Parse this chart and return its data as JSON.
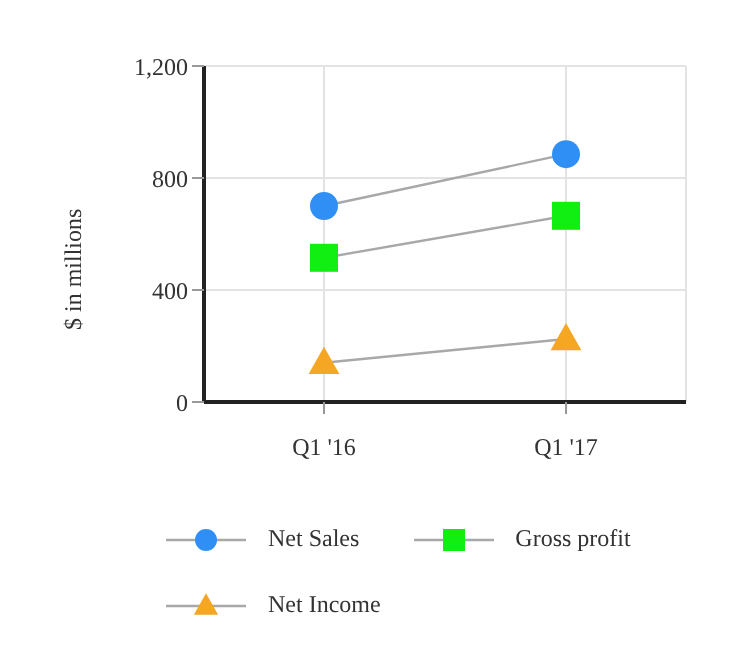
{
  "chart_data": {
    "type": "line",
    "ylabel": "$ in millions",
    "categories": [
      "Q1 '16",
      "Q1 '17"
    ],
    "series": [
      {
        "name": "Net Sales",
        "color": "#2f8ff5",
        "marker": "circle",
        "values": [
          700,
          885
        ]
      },
      {
        "name": "Gross profit",
        "color": "#11ee11",
        "marker": "square",
        "values": [
          515,
          665
        ]
      },
      {
        "name": "Net Income",
        "color": "#f5a623",
        "marker": "triangle",
        "values": [
          140,
          225
        ]
      }
    ],
    "ylim": [
      0,
      1200
    ],
    "yticks": [
      0,
      400,
      800,
      {
        "value": 1200,
        "label": "1,200"
      }
    ],
    "grid": true,
    "legend": "bottom"
  }
}
